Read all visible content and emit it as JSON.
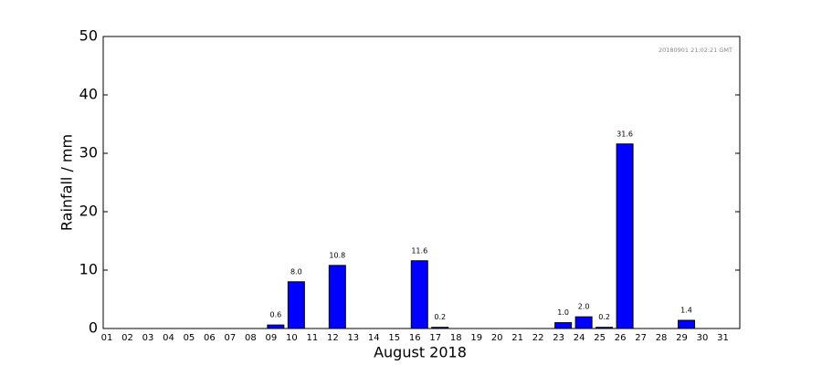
{
  "chart_data": {
    "type": "bar",
    "xlabel": "August 2018",
    "ylabel": "Rainfall / mm",
    "annotation": "20180901 21:02:21 GMT",
    "categories": [
      "01",
      "02",
      "03",
      "04",
      "05",
      "06",
      "07",
      "08",
      "09",
      "10",
      "11",
      "12",
      "13",
      "14",
      "15",
      "16",
      "17",
      "18",
      "19",
      "20",
      "21",
      "22",
      "23",
      "24",
      "25",
      "26",
      "27",
      "28",
      "29",
      "30",
      "31"
    ],
    "values": [
      0,
      0,
      0,
      0,
      0,
      0,
      0,
      0,
      0.6,
      8.0,
      0,
      10.8,
      0,
      0,
      0,
      11.6,
      0.2,
      0,
      0,
      0,
      0,
      0,
      1.0,
      2.0,
      0.2,
      31.6,
      0,
      0,
      1.4,
      0,
      0
    ],
    "value_labels": [
      null,
      null,
      null,
      null,
      null,
      null,
      null,
      null,
      "0.6",
      "8.0",
      null,
      "10.8",
      null,
      null,
      null,
      "11.6",
      "0.2",
      null,
      null,
      null,
      null,
      null,
      "1.0",
      "2.0",
      "0.2",
      "31.6",
      null,
      null,
      "1.4",
      null,
      null
    ],
    "color": "#0000ff",
    "ylim": [
      0,
      50
    ],
    "yticks": [
      0,
      10,
      20,
      30,
      40,
      50
    ],
    "grid": false
  }
}
